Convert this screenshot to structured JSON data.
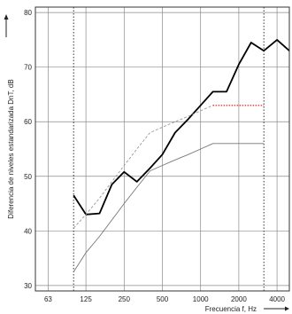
{
  "chart_data": {
    "type": "line",
    "xlabel": "Frecuencia f, Hz",
    "ylabel": "Diferencia de niveles estandarizada DnT, dB",
    "x_scale": "log",
    "x_ticks": [
      63,
      125,
      250,
      500,
      1000,
      2000,
      4000
    ],
    "y_ticks": [
      30,
      40,
      50,
      60,
      70,
      80
    ],
    "ylim": [
      29,
      81
    ],
    "xlim_hz": [
      50,
      5000
    ],
    "grid": true,
    "x_dotted_markers_hz": [
      100,
      3150
    ],
    "series": [
      {
        "style": "solid-bold",
        "color": "#000000",
        "x": [
          100,
          125,
          160,
          200,
          250,
          315,
          400,
          500,
          630,
          800,
          1000,
          1250,
          1600,
          2000,
          2500,
          3150,
          4000,
          5000
        ],
        "y": [
          46.5,
          43,
          43.2,
          48.5,
          50.8,
          49,
          51.5,
          54,
          58,
          60.5,
          63,
          65.5,
          65.5,
          70.5,
          74.5,
          73,
          75,
          73
        ]
      },
      {
        "style": "solid-thin",
        "color": "#777777",
        "x": [
          100,
          125,
          160,
          200,
          250,
          315,
          400,
          500,
          630,
          800,
          1000,
          1250,
          1600,
          2000,
          2500,
          3150
        ],
        "y": [
          32.5,
          36,
          39,
          42,
          45,
          48,
          51,
          52,
          53,
          54,
          55,
          56,
          56,
          56,
          56,
          56
        ]
      },
      {
        "style": "dashed",
        "color": "#999999",
        "x": [
          100,
          125,
          160,
          200,
          250,
          315,
          400,
          500,
          630,
          800,
          1000,
          1250
        ],
        "y": [
          40.5,
          43,
          46,
          49,
          52,
          55,
          58,
          59,
          60,
          61,
          62,
          63
        ]
      },
      {
        "style": "dotted",
        "color": "#e23a3a",
        "x": [
          1250,
          1600,
          2000,
          2500,
          3150
        ],
        "y": [
          63,
          63,
          63,
          63,
          63
        ]
      }
    ]
  }
}
